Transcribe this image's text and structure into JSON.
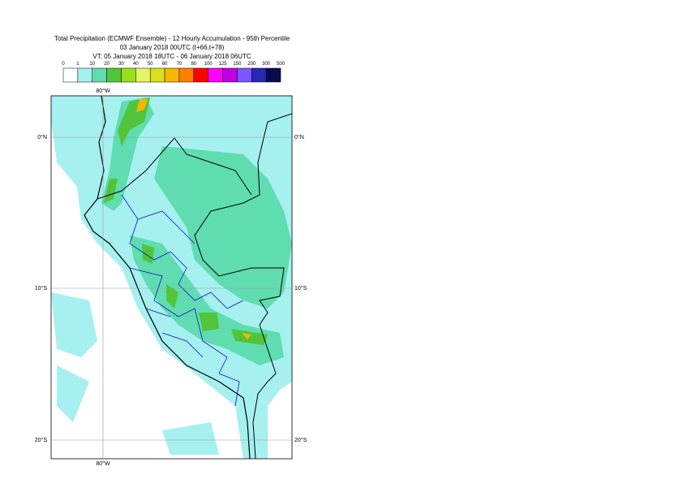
{
  "header": {
    "lines": [
      "Total Precipitation (ECMWF Ensemble) - 12 Hourly Accumulation - 95th Percentile",
      "03 January 2018 00UTC (t+66,t+78)",
      "VT: 05 January 2018 18UTC - 06 January 2018 06UTC"
    ]
  },
  "legend": {
    "labels": [
      0,
      1,
      10,
      20,
      30,
      40,
      50,
      60,
      70,
      80,
      100,
      125,
      150,
      200,
      300,
      500
    ],
    "colors": [
      "#ffffff",
      "#a6f0ef",
      "#5fdcb0",
      "#52c43a",
      "#97e01a",
      "#e5f56b",
      "#dede1c",
      "#f5b800",
      "#ff7f00",
      "#ff0000",
      "#ff00ff",
      "#c000e0",
      "#7b55ff",
      "#2828b4",
      "#0a0a50"
    ]
  },
  "map": {
    "lon_label": "80°W",
    "lat_labels": [
      "0°N",
      "10°S",
      "20°S"
    ]
  }
}
